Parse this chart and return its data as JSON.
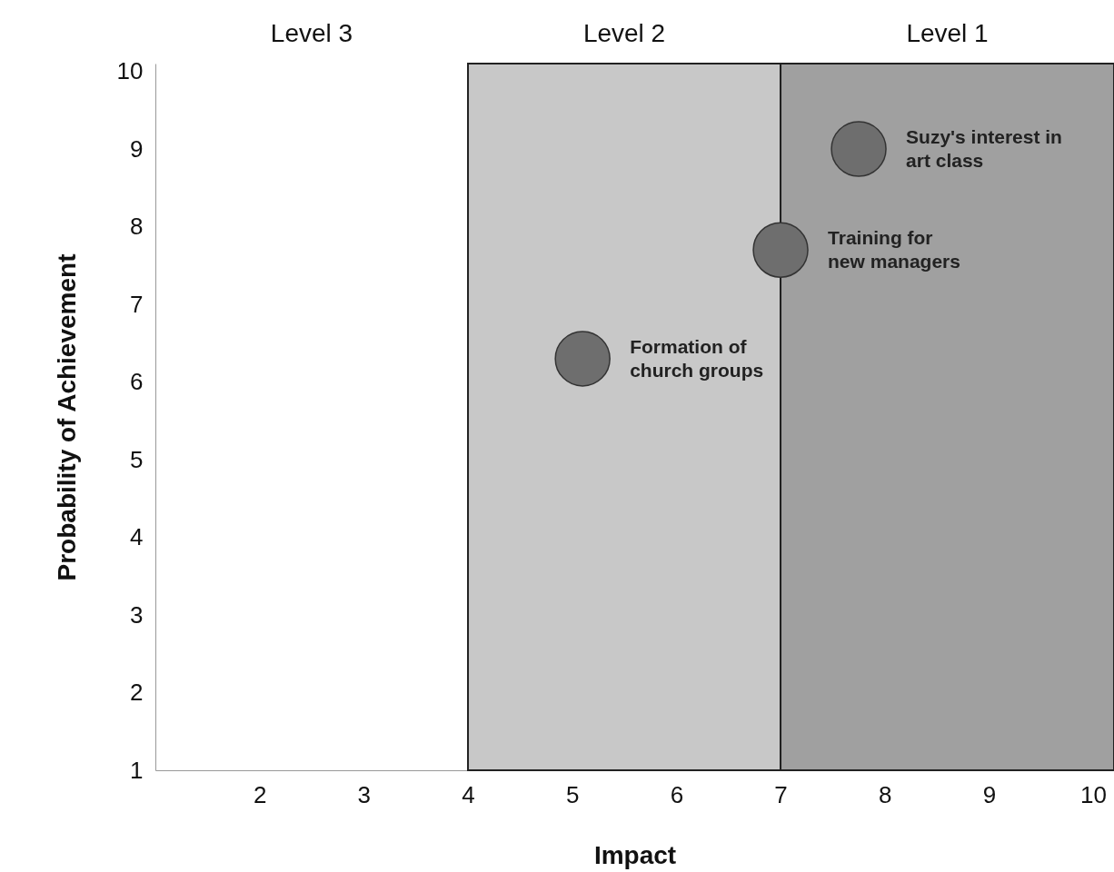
{
  "chart_data": {
    "type": "scatter",
    "xlabel": "Impact",
    "ylabel": "Probability of Achievement",
    "x": [
      7.75,
      7.0,
      5.1
    ],
    "series": [
      {
        "color": "#6e6e6e",
        "values": [
          9.0,
          7.7,
          6.3
        ]
      }
    ],
    "marker": "circle",
    "grid": false,
    "xlim": [
      1,
      10.2
    ],
    "ylim": [
      1,
      10.1
    ],
    "xticks": [
      2,
      3,
      4,
      5,
      6,
      7,
      8,
      9,
      10
    ],
    "yticks": [
      1,
      2,
      3,
      4,
      5,
      6,
      7,
      8,
      9,
      10
    ],
    "bands": [
      {
        "axis": "x",
        "from": 4,
        "to": 7,
        "label": "Level 2",
        "color": "#c8c8c8"
      },
      {
        "axis": "x",
        "from": 7,
        "to": 10.2,
        "label": "Level 1",
        "color": "#a0a0a0"
      }
    ],
    "annotations": [
      "Level 3",
      {
        "text": "Suzy's interest in art class",
        "x": 7.75,
        "y": 9.0
      },
      {
        "text": "Training for new managers",
        "x": 7.0,
        "y": 7.7
      },
      {
        "text": "Formation of church groups",
        "x": 5.1,
        "y": 6.3
      }
    ]
  }
}
